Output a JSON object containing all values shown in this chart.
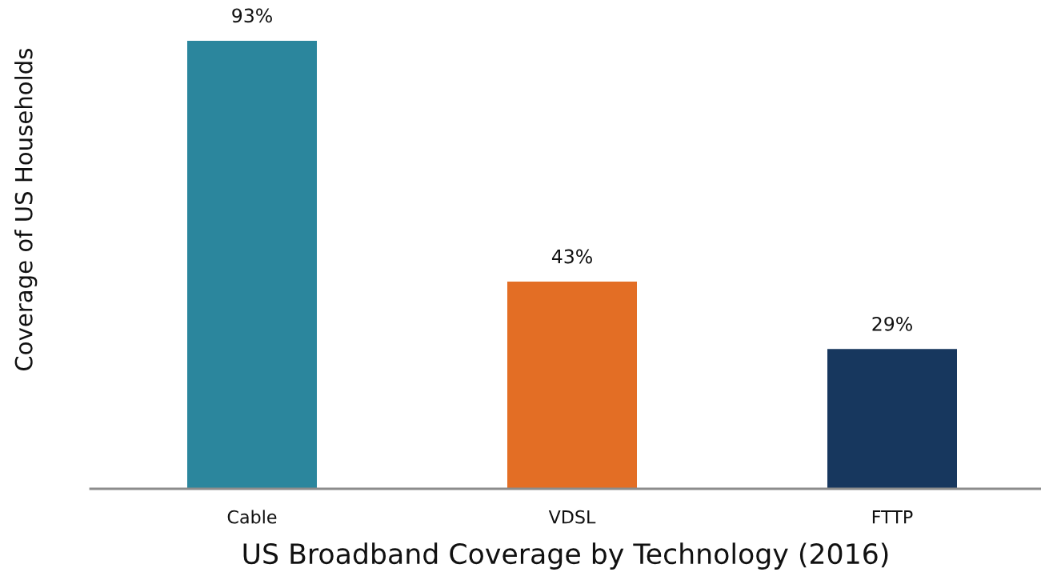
{
  "chart_data": {
    "type": "bar",
    "xlabel": "US Broadband Coverage by Technology (2016)",
    "ylabel": "Coverage of US Households",
    "categories": [
      "Cable",
      "VDSL",
      "FTTP"
    ],
    "values": [
      93,
      43,
      29
    ],
    "colors": [
      "#2b869d",
      "#e36e25",
      "#17375e"
    ],
    "value_labels": [
      "93%",
      "43%",
      "29%"
    ]
  }
}
